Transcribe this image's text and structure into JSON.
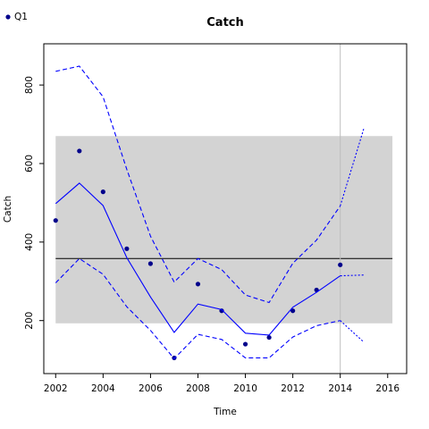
{
  "chart_data": {
    "type": "line",
    "title": "Catch",
    "xlabel": "Time",
    "ylabel": "Catch",
    "xlim": [
      2001.5,
      2016.8
    ],
    "ylim": [
      65,
      905
    ],
    "x_ticks": [
      2002,
      2004,
      2006,
      2008,
      2010,
      2012,
      2014,
      2016
    ],
    "y_ticks": [
      200,
      400,
      600,
      800
    ],
    "legend": {
      "position": "top-left",
      "entries": [
        {
          "label": "Q1",
          "color": "#00008b",
          "marker": "point"
        }
      ]
    },
    "band": {
      "x": [
        2002,
        2016.2
      ],
      "y": [
        193,
        670
      ],
      "color": "#d3d3d3"
    },
    "hline": {
      "y": 358,
      "color": "#000000"
    },
    "vline": {
      "x": 2014,
      "color": "#bebebe"
    },
    "series": [
      {
        "name": "Q1",
        "style": "points",
        "color": "#00008b",
        "x": [
          2002,
          2003,
          2004,
          2005,
          2006,
          2007,
          2008,
          2009,
          2010,
          2011,
          2012,
          2013,
          2014
        ],
        "y": [
          455,
          632,
          528,
          383,
          345,
          105,
          293,
          225,
          140,
          157,
          225,
          278,
          342
        ]
      },
      {
        "style": "solid",
        "color": "#0000ff",
        "x": [
          2002,
          2003,
          2004,
          2005,
          2006,
          2007,
          2008,
          2009,
          2010,
          2011,
          2012,
          2013,
          2014
        ],
        "y": [
          498,
          550,
          493,
          360,
          260,
          170,
          242,
          228,
          168,
          163,
          234,
          272,
          314
        ]
      },
      {
        "style": "dashed",
        "color": "#0000ff",
        "x": [
          2002,
          2003,
          2004,
          2005,
          2006,
          2007,
          2008,
          2009,
          2010,
          2011,
          2012,
          2013,
          2014
        ],
        "y": [
          835,
          848,
          770,
          585,
          415,
          298,
          358,
          330,
          265,
          246,
          346,
          405,
          492
        ]
      },
      {
        "style": "dashed",
        "color": "#0000ff",
        "x": [
          2002,
          2003,
          2004,
          2005,
          2006,
          2007,
          2008,
          2009,
          2010,
          2011,
          2012,
          2013,
          2014
        ],
        "y": [
          296,
          358,
          318,
          235,
          175,
          103,
          165,
          152,
          105,
          105,
          158,
          187,
          200
        ]
      },
      {
        "style": "dotted",
        "color": "#0000ff",
        "x": [
          2014,
          2015
        ],
        "y": [
          314,
          316
        ]
      },
      {
        "style": "dotted",
        "color": "#0000ff",
        "x": [
          2014,
          2015
        ],
        "y": [
          492,
          690
        ]
      },
      {
        "style": "dotted",
        "color": "#0000ff",
        "x": [
          2014,
          2015
        ],
        "y": [
          200,
          145
        ]
      }
    ]
  }
}
